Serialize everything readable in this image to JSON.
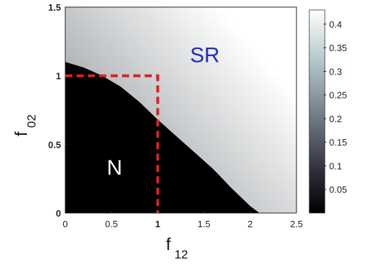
{
  "chart_data": {
    "type": "heatmap",
    "xlabel": {
      "main": "f",
      "sub": "12"
    },
    "ylabel": {
      "main": "f",
      "sub": "02"
    },
    "xlim": [
      0,
      2.5
    ],
    "ylim": [
      0,
      1.5
    ],
    "x_ticks": [
      "0",
      "0.5",
      "1",
      "1.5",
      "2",
      "2.5"
    ],
    "y_ticks": [
      "0",
      "0.5",
      "1",
      "1.5"
    ],
    "colorbar": {
      "range": [
        0,
        0.43
      ],
      "ticks": [
        "0.05",
        "0.1",
        "0.15",
        "0.2",
        "0.25",
        "0.3",
        "0.35",
        "0.4"
      ],
      "colormap": "bone"
    },
    "boundary": {
      "description_points_x": [
        0,
        0.2,
        0.4,
        0.6,
        0.8,
        1.0,
        1.2,
        1.4,
        1.6,
        1.8,
        2.0,
        2.1
      ],
      "description_points_y": [
        1.1,
        1.06,
        1.0,
        0.92,
        0.81,
        0.68,
        0.56,
        0.44,
        0.32,
        0.18,
        0.05,
        0.0
      ]
    },
    "dashed_line": {
      "color": "#e02020",
      "points": [
        [
          0,
          1
        ],
        [
          1,
          1
        ],
        [
          1,
          0
        ]
      ]
    },
    "regions": [
      {
        "label": "SR",
        "x": 1.35,
        "y": 1.1,
        "color": "#1f2fb8"
      },
      {
        "label": "N",
        "x": 0.45,
        "y": 0.28,
        "color": "#ffffff"
      }
    ]
  }
}
